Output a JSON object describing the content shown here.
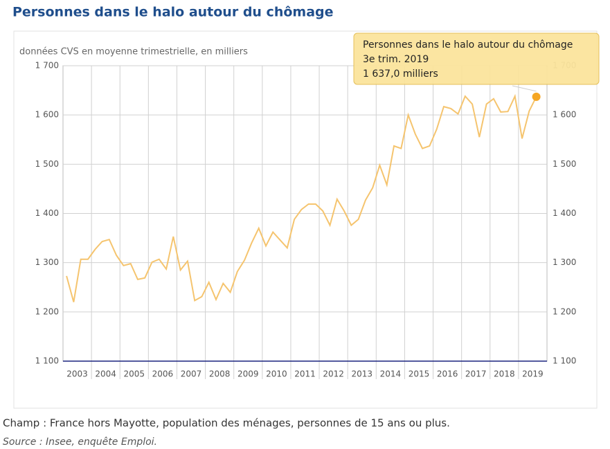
{
  "chart_data": {
    "type": "line",
    "title": "Personnes dans le halo autour du chômage",
    "subtitle": "données CVS en moyenne trimestrielle, en milliers",
    "years": [
      "2003",
      "2004",
      "2005",
      "2006",
      "2007",
      "2008",
      "2009",
      "2010",
      "2011",
      "2012",
      "2013",
      "2014",
      "2015",
      "2016",
      "2017",
      "2018",
      "2019"
    ],
    "series": [
      {
        "name": "Personnes dans le halo autour du chômage",
        "color": "#f5c46e",
        "values": [
          1273,
          1220,
          1307,
          1307,
          1327,
          1343,
          1347,
          1315,
          1294,
          1298,
          1266,
          1269,
          1301,
          1307,
          1287,
          1353,
          1285,
          1303,
          1223,
          1231,
          1260,
          1225,
          1258,
          1240,
          1282,
          1305,
          1340,
          1370,
          1334,
          1362,
          1346,
          1330,
          1388,
          1408,
          1419,
          1419,
          1405,
          1376,
          1429,
          1405,
          1376,
          1388,
          1427,
          1452,
          1498,
          1458,
          1537,
          1532,
          1600,
          1561,
          1532,
          1537,
          1571,
          1617,
          1613,
          1602,
          1638,
          1622,
          1555,
          1622,
          1633,
          1606,
          1607,
          1638,
          1552,
          1608,
          1637
        ]
      }
    ],
    "ylim": [
      1100,
      1700
    ],
    "yticks": [
      {
        "value": 1100,
        "label": "1 100"
      },
      {
        "value": 1200,
        "label": "1 200"
      },
      {
        "value": 1300,
        "label": "1 300"
      },
      {
        "value": 1400,
        "label": "1 400"
      },
      {
        "value": 1500,
        "label": "1 500"
      },
      {
        "value": 1600,
        "label": "1 600"
      },
      {
        "value": 1700,
        "label": "1 700"
      }
    ],
    "grid": true,
    "tooltip": {
      "title": "Personnes dans le halo autour du chômage",
      "period": "3e trim. 2019",
      "value_label": "1 637,0 milliers",
      "color": "#f5a623"
    },
    "note": "Champ : France hors Mayotte, population des ménages, personnes de 15 ans ou plus.",
    "source": "Source : Insee, enquête Emploi."
  }
}
